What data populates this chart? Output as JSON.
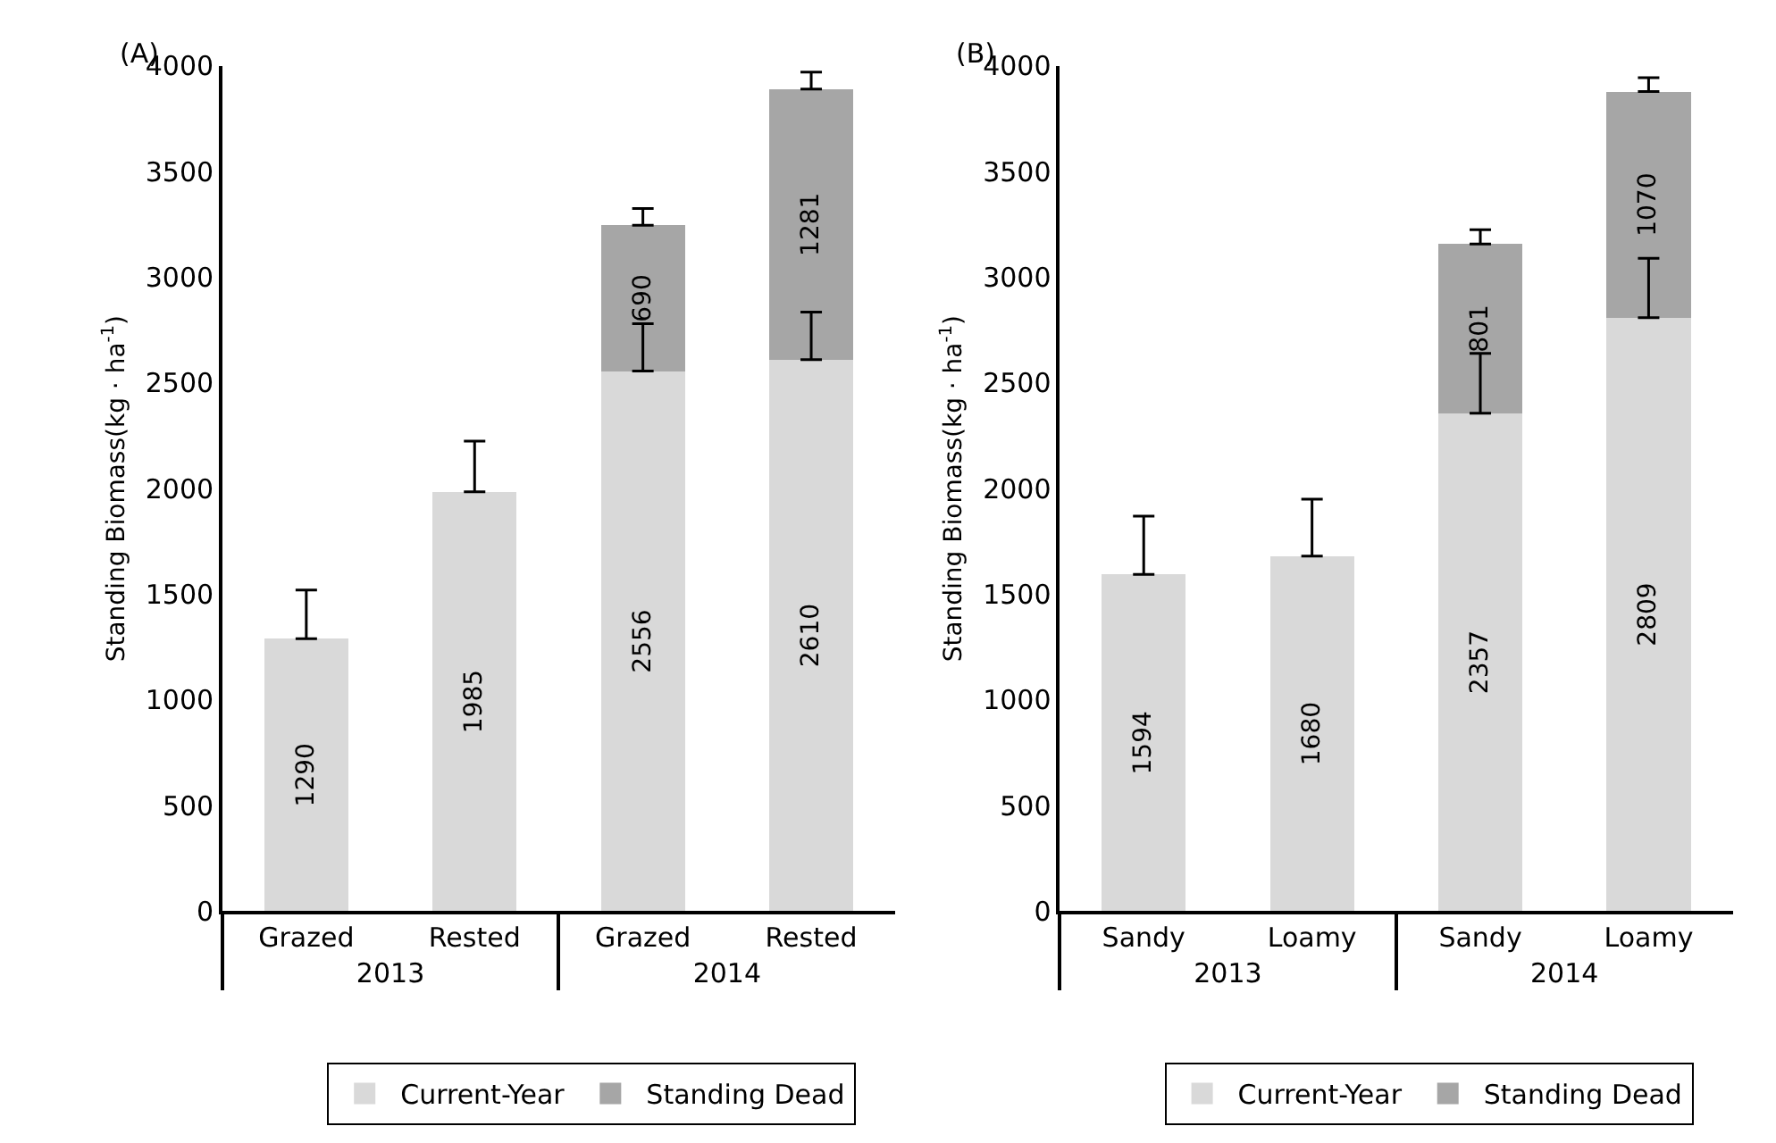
{
  "chart_data": [
    {
      "type": "bar",
      "title": "(A)",
      "ylabel": "Standing Biomass(kg · ha$^{-1}$)",
      "categories": [
        "Grazed",
        "Rested",
        "Grazed",
        "Rested"
      ],
      "annotations": [
        "2013",
        "2014"
      ],
      "stacked": true,
      "data_labels": true,
      "ylim": [
        0,
        4000
      ],
      "yticks": [
        0,
        500,
        1000,
        1500,
        2000,
        2500,
        3000,
        3500,
        4000
      ],
      "grid": false,
      "legend": "bottom",
      "series": [
        {
          "name": "Current-Year",
          "color": "#d9d9d9",
          "values": [
            1290,
            1985,
            2556,
            2610
          ],
          "errors": [
            [
              1290,
              1520
            ],
            [
              1985,
              2225
            ],
            [
              2556,
              2780
            ],
            [
              2610,
              2835
            ]
          ]
        },
        {
          "name": "Standing Dead",
          "color": "#a6a6a6",
          "values": [
            null,
            null,
            690,
            1281
          ],
          "errors": [
            null,
            null,
            [
              3246,
              3326
            ],
            [
              3891,
              3971
            ]
          ]
        }
      ]
    },
    {
      "type": "bar",
      "title": "(B)",
      "ylabel": "Standing Biomass(kg · ha$^{-1}$)",
      "categories": [
        "Sandy",
        "Loamy",
        "Sandy",
        "Loamy"
      ],
      "annotations": [
        "2013",
        "2014"
      ],
      "stacked": true,
      "data_labels": true,
      "ylim": [
        0,
        4000
      ],
      "yticks": [
        0,
        500,
        1000,
        1500,
        2000,
        2500,
        3000,
        3500,
        4000
      ],
      "grid": false,
      "legend": "bottom",
      "series": [
        {
          "name": "Current-Year",
          "color": "#d9d9d9",
          "values": [
            1594,
            1680,
            2357,
            2809
          ],
          "errors": [
            [
              1594,
              1870
            ],
            [
              1680,
              1950
            ],
            [
              2357,
              2640
            ],
            [
              2809,
              3090
            ]
          ]
        },
        {
          "name": "Standing Dead",
          "color": "#a6a6a6",
          "values": [
            null,
            null,
            801,
            1070
          ],
          "errors": [
            null,
            null,
            [
              3158,
              3225
            ],
            [
              3879,
              3945
            ]
          ]
        }
      ]
    }
  ]
}
